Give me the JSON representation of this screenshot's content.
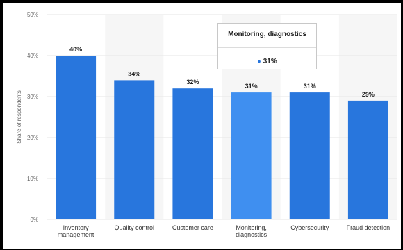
{
  "chart_data": {
    "type": "bar",
    "categories": [
      [
        "Inventory",
        "management"
      ],
      [
        "Quality control"
      ],
      [
        "Customer care"
      ],
      [
        "Monitoring,",
        "diagnostics"
      ],
      [
        "Cybersecurity"
      ],
      [
        "Fraud detection"
      ]
    ],
    "values": [
      40,
      34,
      32,
      31,
      31,
      29
    ],
    "data_labels": [
      "40%",
      "34%",
      "32%",
      "31%",
      "31%",
      "29%"
    ],
    "yticks": [
      0,
      10,
      20,
      30,
      40,
      50
    ],
    "ytick_labels": [
      "0%",
      "10%",
      "20%",
      "30%",
      "40%",
      "50%"
    ],
    "ylabel": "Share of respondents",
    "xlabel": "",
    "title": "",
    "ylim": [
      0,
      50
    ],
    "grid": true,
    "highlighted_index": 3,
    "colors": {
      "bar": "#2876dd",
      "bar_highlight": "#3f8ff0",
      "band": "#f6f6f6",
      "grid": "#e6e6e6"
    }
  },
  "tooltip": {
    "title": "Monitoring, diagnostics",
    "value": "31%"
  }
}
